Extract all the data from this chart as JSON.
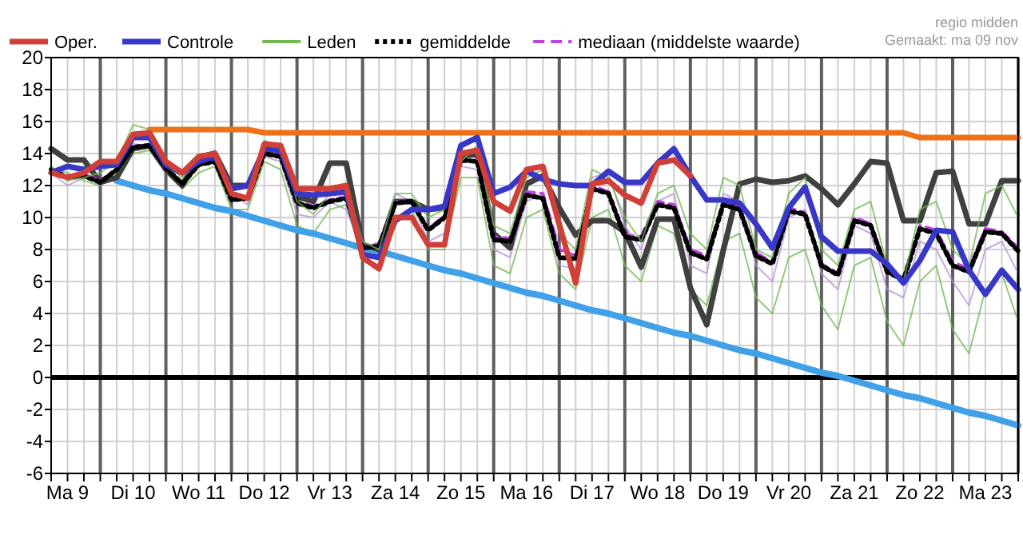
{
  "chart_data": {
    "type": "line",
    "annotations": [
      "regio midden",
      "Gemaakt: ma 09 nov"
    ],
    "categories": [
      null,
      "Ma 9",
      null,
      null,
      null,
      "Di 10",
      null,
      null,
      null,
      "Wo 11",
      null,
      null,
      null,
      "Do 12",
      null,
      null,
      null,
      "Vr 13",
      null,
      null,
      null,
      "Za 14",
      null,
      null,
      null,
      "Zo 15",
      null,
      null,
      null,
      "Ma 16",
      null,
      null,
      null,
      "Di 17",
      null,
      null,
      null,
      "Wo 18",
      null,
      null,
      null,
      "Do 19",
      null,
      null,
      null,
      "Vr 20",
      null,
      null,
      null,
      "Za 21",
      null,
      null,
      null,
      "Zo 22",
      null,
      null,
      null,
      "Ma 23",
      null,
      null
    ],
    "ylim": [
      -6,
      20
    ],
    "yticks": [
      -6,
      -4,
      -2,
      0,
      2,
      4,
      6,
      8,
      10,
      12,
      14,
      16,
      18,
      20
    ],
    "grid": true,
    "legend": "top",
    "ref_lines": [
      {
        "axis": "y",
        "value": 0,
        "color": "#000000"
      }
    ],
    "series": [
      {
        "name": "Oper.",
        "color": "#d04038",
        "values": [
          12.8,
          12.5,
          12.8,
          13.5,
          13.5,
          15.2,
          15.3,
          13.5,
          12.8,
          13.8,
          14.0,
          11.5,
          11.2,
          14.6,
          14.5,
          11.8,
          11.8,
          11.8,
          12.0,
          7.5,
          6.8,
          10.0,
          10.0,
          8.3,
          8.3,
          14.0,
          14.2,
          11.0,
          10.4,
          13.0,
          13.2,
          9.6,
          5.9,
          12.1,
          12.3,
          11.4,
          10.9,
          13.4,
          13.6,
          12.6,
          null,
          null,
          null,
          null,
          null,
          null,
          null,
          null,
          null,
          null,
          null,
          null,
          null,
          null,
          null,
          null,
          null,
          null,
          null,
          null
        ]
      },
      {
        "name": "Controle",
        "color": "#3838c8",
        "values": [
          12.8,
          13.2,
          13.0,
          13.2,
          13.3,
          15.0,
          15.0,
          13.3,
          12.8,
          13.5,
          13.8,
          11.8,
          12.0,
          14.3,
          14.2,
          11.5,
          11.4,
          11.5,
          11.6,
          7.7,
          7.5,
          9.8,
          10.5,
          10.5,
          10.7,
          14.5,
          15.0,
          11.5,
          11.9,
          12.9,
          12.4,
          12.1,
          12.0,
          12.0,
          12.9,
          12.2,
          12.2,
          13.4,
          14.3,
          12.6,
          11.1,
          11.1,
          10.9,
          9.6,
          8.1,
          10.6,
          11.9,
          8.8,
          7.9,
          7.9,
          7.9,
          7.1,
          5.9,
          7.3,
          9.2,
          9.1,
          6.7,
          5.2,
          6.7,
          5.5
        ]
      },
      {
        "name": "Leden",
        "color": "#70b850",
        "values": [
          13.2,
          12.3,
          12.5,
          12.8,
          13.5,
          15.8,
          15.5,
          13.2,
          12.5,
          13.5,
          14.0,
          12.0,
          11.8,
          14.8,
          14.5,
          11.0,
          10.2,
          11.5,
          12.0,
          8.5,
          8.0,
          11.5,
          11.5,
          10.0,
          10.5,
          13.5,
          14.5,
          9.5,
          9.0,
          12.5,
          13.0,
          9.0,
          8.0,
          13.0,
          12.5,
          10.0,
          8.5,
          11.5,
          12.0,
          9.0,
          8.0,
          12.5,
          12.0,
          8.0,
          7.5,
          11.5,
          12.5,
          8.0,
          7.0,
          10.5,
          11.0,
          7.0,
          6.0,
          10.5,
          11.0,
          8.0,
          7.0,
          11.5,
          12.0,
          10.0
        ]
      },
      {
        "name": "gemiddelde",
        "color": "#000000",
        "line_style": "dotted",
        "values": [
          13.0,
          12.5,
          12.6,
          12.2,
          13.0,
          14.4,
          14.5,
          13.1,
          12.1,
          13.3,
          13.5,
          11.1,
          11.2,
          14.0,
          13.8,
          10.9,
          10.6,
          11.0,
          11.2,
          8.1,
          8.2,
          10.9,
          11.0,
          9.2,
          10.0,
          13.6,
          13.5,
          8.6,
          8.5,
          11.4,
          11.2,
          7.5,
          7.4,
          11.8,
          11.5,
          8.8,
          8.6,
          10.8,
          10.6,
          7.8,
          7.4,
          10.8,
          10.5,
          7.6,
          7.1,
          10.4,
          10.2,
          7.0,
          6.4,
          9.8,
          9.5,
          6.6,
          6.1,
          9.3,
          9.0,
          7.0,
          6.6,
          9.1,
          9.0,
          7.9
        ]
      },
      {
        "name": "mediaan (middelste waarde)",
        "color": "#c040e0",
        "line_style": "dashed",
        "values": [
          13.0,
          12.6,
          12.7,
          12.3,
          13.0,
          14.5,
          14.5,
          13.0,
          12.2,
          13.4,
          13.6,
          11.3,
          11.3,
          14.0,
          13.9,
          11.0,
          10.7,
          11.1,
          11.3,
          8.2,
          8.3,
          11.0,
          11.0,
          9.3,
          10.1,
          13.5,
          13.6,
          8.8,
          8.7,
          11.6,
          11.5,
          8.0,
          7.6,
          12.0,
          11.6,
          8.9,
          8.8,
          11.0,
          10.8,
          8.0,
          7.6,
          11.0,
          10.7,
          7.8,
          7.2,
          10.6,
          10.3,
          7.1,
          6.5,
          10.0,
          9.6,
          6.8,
          6.2,
          9.5,
          9.2,
          7.2,
          6.8,
          9.3,
          9.1,
          8.1
        ]
      },
      {
        "color": "#404040",
        "values": [
          14.3,
          13.6,
          13.6,
          12.2,
          12.5,
          14.3,
          14.5,
          13.0,
          12.0,
          13.8,
          14.0,
          12.0,
          12.0,
          14.2,
          14.0,
          11.3,
          11.0,
          13.4,
          13.4,
          8.3,
          8.0,
          11.0,
          11.0,
          10.5,
          10.6,
          13.8,
          14.0,
          9.0,
          8.1,
          12.1,
          12.6,
          10.6,
          8.9,
          9.8,
          9.8,
          9.1,
          6.9,
          9.9,
          9.9,
          5.6,
          3.3,
          7.9,
          12.1,
          12.4,
          12.2,
          12.3,
          12.6,
          11.8,
          10.8,
          12.1,
          13.5,
          13.4,
          9.8,
          9.8,
          12.8,
          12.9,
          9.6,
          9.6,
          12.3,
          12.3
        ]
      },
      {
        "color": "#f07018",
        "values": [
          null,
          null,
          null,
          null,
          null,
          null,
          15.5,
          15.5,
          15.5,
          15.5,
          15.5,
          15.5,
          15.5,
          15.3,
          15.3,
          15.3,
          15.3,
          15.3,
          15.3,
          15.3,
          15.3,
          15.3,
          15.3,
          15.3,
          15.3,
          15.3,
          15.3,
          15.3,
          15.3,
          15.3,
          15.3,
          15.3,
          15.3,
          15.3,
          15.3,
          15.3,
          15.3,
          15.3,
          15.3,
          15.3,
          15.3,
          15.3,
          15.3,
          15.3,
          15.3,
          15.3,
          15.3,
          15.3,
          15.3,
          15.3,
          15.3,
          15.3,
          15.3,
          15.0,
          15.0,
          15.0,
          15.0,
          15.0,
          15.0,
          15.0
        ]
      },
      {
        "color": "#40a0e8",
        "values": [
          null,
          null,
          null,
          null,
          12.3,
          12.0,
          11.7,
          11.5,
          11.2,
          10.9,
          10.6,
          10.4,
          10.1,
          9.8,
          9.5,
          9.2,
          9.0,
          8.7,
          8.4,
          8.1,
          7.9,
          7.6,
          7.3,
          7.0,
          6.7,
          6.5,
          6.2,
          5.9,
          5.6,
          5.3,
          5.1,
          4.8,
          4.5,
          4.2,
          4.0,
          3.7,
          3.4,
          3.1,
          2.8,
          2.6,
          2.3,
          2.0,
          1.7,
          1.5,
          1.2,
          0.9,
          0.6,
          0.3,
          0.1,
          -0.2,
          -0.5,
          -0.8,
          -1.1,
          -1.3,
          -1.6,
          -1.9,
          -2.2,
          -2.4,
          -2.7,
          -3.0
        ]
      },
      {
        "color": "#70b850",
        "values": [
          13.0,
          12.8,
          12.3,
          12.0,
          12.8,
          14.0,
          14.2,
          12.8,
          11.8,
          12.8,
          13.2,
          10.5,
          10.5,
          13.5,
          13.0,
          9.5,
          9.0,
          10.5,
          10.8,
          7.5,
          7.0,
          10.0,
          10.5,
          8.0,
          8.0,
          12.5,
          12.5,
          7.0,
          6.5,
          10.0,
          10.5,
          6.5,
          5.5,
          10.0,
          10.5,
          7.0,
          6.0,
          9.5,
          9.0,
          5.5,
          4.5,
          8.5,
          9.0,
          5.0,
          4.0,
          7.5,
          8.0,
          4.5,
          3.0,
          7.0,
          7.5,
          3.5,
          2.0,
          6.0,
          7.0,
          3.0,
          1.5,
          5.5,
          6.5,
          3.5
        ]
      },
      {
        "color": "#b890d8",
        "values": [
          12.8,
          12.0,
          12.5,
          12.3,
          12.5,
          14.6,
          14.5,
          12.8,
          12.2,
          13.8,
          14.2,
          11.5,
          10.8,
          13.8,
          13.5,
          10.2,
          10.0,
          11.0,
          10.5,
          8.0,
          8.5,
          11.5,
          11.0,
          8.5,
          9.0,
          13.2,
          13.0,
          8.0,
          7.5,
          11.0,
          11.5,
          7.0,
          6.8,
          12.5,
          12.8,
          9.5,
          8.0,
          11.0,
          11.5,
          7.0,
          6.5,
          11.5,
          11.0,
          7.0,
          6.0,
          10.0,
          10.5,
          6.5,
          5.5,
          9.5,
          9.0,
          5.5,
          5.0,
          8.5,
          8.0,
          6.0,
          4.5,
          8.0,
          8.5,
          6.5
        ]
      }
    ]
  }
}
